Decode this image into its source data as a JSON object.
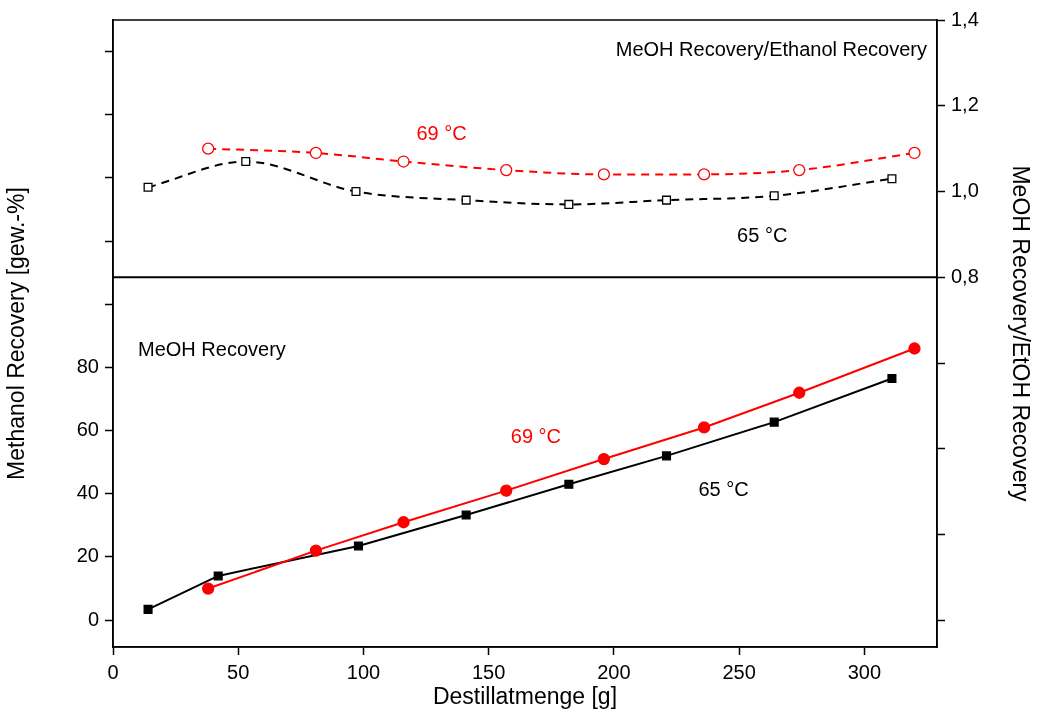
{
  "chart_data": {
    "type": "line",
    "xlabel": "Destillatmenge [g]",
    "ylabel": "Methanol Recovery [gew.-%]",
    "y2label": "MeOH Recovery/EtOH Recovery",
    "xlim": [
      0,
      329
    ],
    "xticks": [
      0,
      50,
      100,
      150,
      200,
      250,
      300
    ],
    "ylim": [
      -8.5,
      190
    ],
    "yticks": [
      0,
      20,
      40,
      60,
      80,
      {
        "value": 100,
        "label": null
      },
      {
        "value": 120,
        "label": null
      },
      {
        "value": 140,
        "label": null
      },
      {
        "value": 160,
        "label": null
      },
      {
        "value": 180,
        "label": null
      }
    ],
    "y2lim": [
      -0.062,
      1.4
    ],
    "y2ticks": [
      {
        "value": 0,
        "label": null
      },
      {
        "value": 0.2,
        "label": null
      },
      {
        "value": 0.4,
        "label": null
      },
      {
        "value": 0.6,
        "label": null
      },
      {
        "value": 0.8,
        "label": "0,8"
      },
      {
        "value": 1.0,
        "label": "1,0"
      },
      {
        "value": 1.2,
        "label": "1,2"
      },
      {
        "value": 1.4,
        "label": "1,4"
      }
    ],
    "grid": false,
    "legend": false,
    "ref_lines": [
      {
        "axis": "y2",
        "value": 0.8,
        "color": "#000000"
      }
    ],
    "annotations": [
      "MeOH Recovery/Ethanol Recovery",
      "MeOH Recovery"
    ],
    "series": [
      {
        "name": "69 °C",
        "color": "#ff0000",
        "axis": "y2",
        "marker": "circle",
        "line_style": "dashed",
        "x": [
          38,
          81,
          116,
          157,
          196,
          236,
          274,
          320
        ],
        "values": [
          1.1,
          1.09,
          1.07,
          1.05,
          1.04,
          1.04,
          1.05,
          1.09
        ]
      },
      {
        "name": "65 °C",
        "color": "#000000",
        "axis": "y2",
        "marker": "square",
        "line_style": "dashed",
        "x": [
          14,
          53,
          97,
          141,
          182,
          221,
          264,
          311
        ],
        "values": [
          1.01,
          1.07,
          1.0,
          0.98,
          0.97,
          0.98,
          0.99,
          1.03
        ]
      },
      {
        "name": "69 °C",
        "color": "#ff0000",
        "axis": "y",
        "marker": "circle",
        "line_style": "solid",
        "x": [
          38,
          81,
          116,
          157,
          196,
          236,
          274,
          320
        ],
        "values": [
          10,
          22,
          31,
          41,
          51,
          61,
          72,
          86
        ]
      },
      {
        "name": "65 °C",
        "color": "#000000",
        "axis": "y",
        "marker": "square",
        "line_style": "solid",
        "x": [
          14,
          42,
          98,
          141,
          182,
          221,
          264,
          311
        ],
        "values": [
          3.4,
          14,
          23.5,
          33.3,
          43,
          52,
          62.7,
          76.5
        ]
      }
    ]
  }
}
